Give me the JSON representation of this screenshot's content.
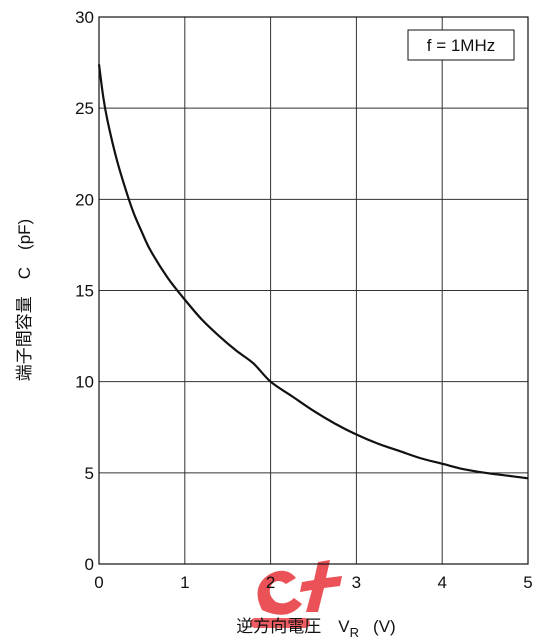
{
  "chart_data": {
    "type": "line",
    "title": "",
    "xlabel": "逆方向電圧　V_R　(V)",
    "xlabel_main": "逆方向電圧　V",
    "xlabel_sub": "R",
    "xlabel_unit": "(V)",
    "ylabel": "端子間容量　C　(pF)",
    "xlim": [
      0,
      5
    ],
    "ylim": [
      0,
      30
    ],
    "x_ticks": [
      "0",
      "1",
      "2",
      "3",
      "4",
      "5"
    ],
    "y_ticks": [
      "0",
      "5",
      "10",
      "15",
      "20",
      "25",
      "30"
    ],
    "grid": true,
    "annotation": "f = 1MHz",
    "annotation_position": "top-right",
    "line_color": "#111111",
    "grid_color": "#333333",
    "watermark_color": "#e8343a",
    "series": [
      {
        "x": [
          0,
          0.05,
          0.1,
          0.2,
          0.3,
          0.4,
          0.5,
          0.6,
          0.8,
          1.0,
          1.2,
          1.4,
          1.6,
          1.8,
          2.0,
          2.25,
          2.5,
          2.75,
          3.0,
          3.25,
          3.5,
          3.75,
          4.0,
          4.25,
          4.5,
          4.75,
          5.0
        ],
        "y": [
          27.4,
          25.6,
          24.3,
          22.3,
          20.7,
          19.3,
          18.2,
          17.2,
          15.7,
          14.5,
          13.4,
          12.5,
          11.7,
          11.0,
          10.0,
          9.2,
          8.4,
          7.7,
          7.1,
          6.6,
          6.2,
          5.8,
          5.5,
          5.2,
          5.0,
          4.85,
          4.7
        ]
      }
    ]
  }
}
